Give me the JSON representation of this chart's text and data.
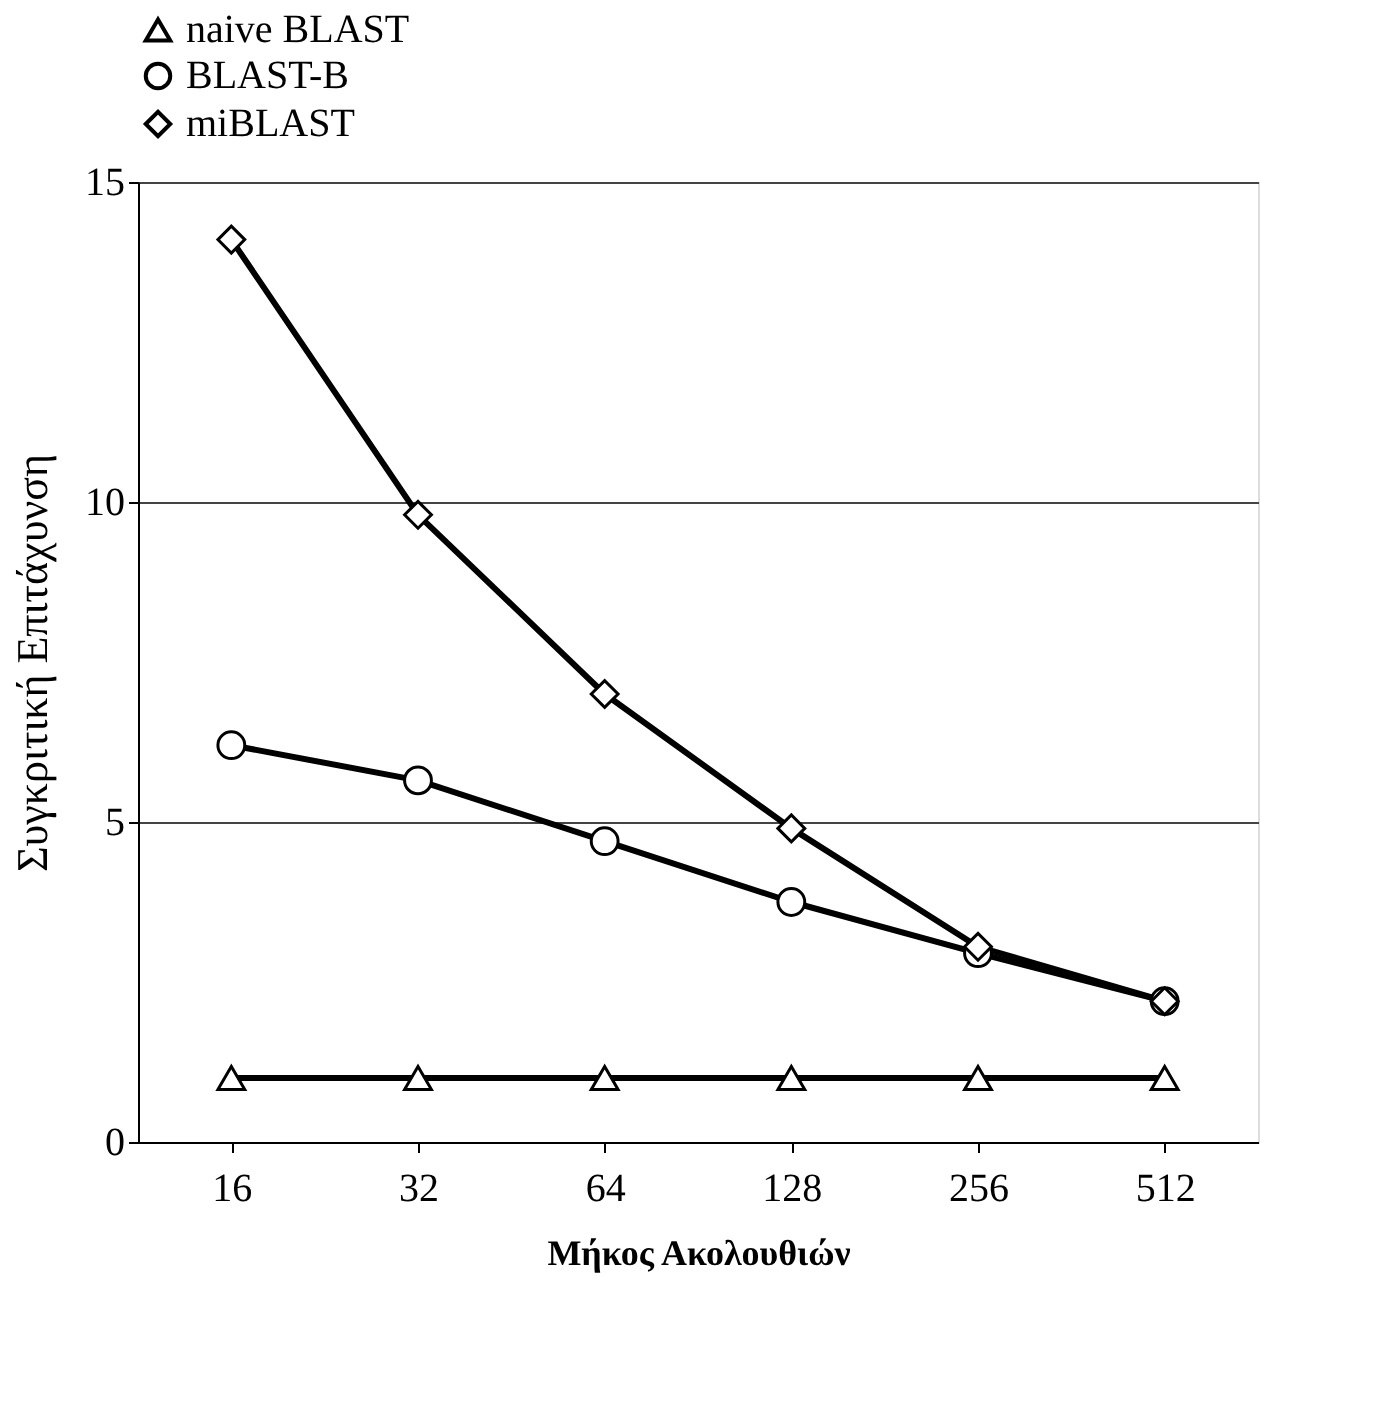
{
  "chart_data": {
    "type": "line",
    "xlabel": "Μήκος Ακολουθιών",
    "ylabel": "Συγκριτική Επιτάχυνση",
    "categories": [
      "16",
      "32",
      "64",
      "128",
      "256",
      "512"
    ],
    "ylim": [
      0,
      15
    ],
    "yticks": [
      0,
      5,
      10,
      15
    ],
    "grid": "y",
    "legend": "top",
    "line_style": "solid",
    "series": [
      {
        "name": "naive BLAST",
        "color": "#000000",
        "marker": "triangle",
        "values": [
          1,
          1,
          1,
          1,
          1,
          1
        ]
      },
      {
        "name": "BLAST-B",
        "color": "#000000",
        "marker": "circle",
        "values": [
          6.2,
          5.65,
          4.7,
          3.75,
          2.95,
          2.2
        ]
      },
      {
        "name": "miBLAST",
        "color": "#000000",
        "marker": "diamond",
        "values": [
          14.1,
          9.8,
          7.0,
          4.9,
          3.05,
          2.2
        ]
      }
    ]
  }
}
